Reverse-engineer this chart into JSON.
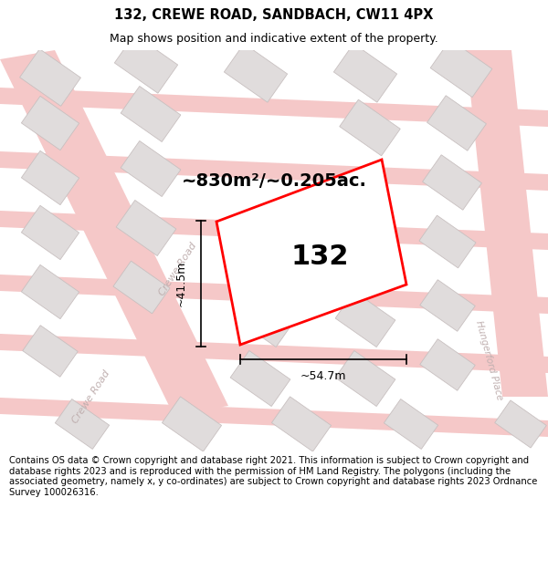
{
  "title": "132, CREWE ROAD, SANDBACH, CW11 4PX",
  "subtitle": "Map shows position and indicative extent of the property.",
  "footer": "Contains OS data © Crown copyright and database right 2021. This information is subject to Crown copyright and database rights 2023 and is reproduced with the permission of HM Land Registry. The polygons (including the associated geometry, namely x, y co-ordinates) are subject to Crown copyright and database rights 2023 Ordnance Survey 100026316.",
  "area_label": "~830m²/~0.205ac.",
  "property_label": "132",
  "dim_width": "~54.7m",
  "dim_height": "~41.5m",
  "bg_color": "#ffffff",
  "road_color": "#f5c8c8",
  "building_fill": "#e0dcdc",
  "building_edge": "#c8c0c0",
  "prop_fill": "#ffffff",
  "prop_edge": "#ff0000",
  "road_label_color": "#c0b0b0",
  "title_fontsize": 10.5,
  "subtitle_fontsize": 9,
  "footer_fontsize": 7.2,
  "area_fontsize": 14,
  "label_fontsize": 22,
  "dim_fontsize": 9,
  "road_label_fontsize": 8
}
